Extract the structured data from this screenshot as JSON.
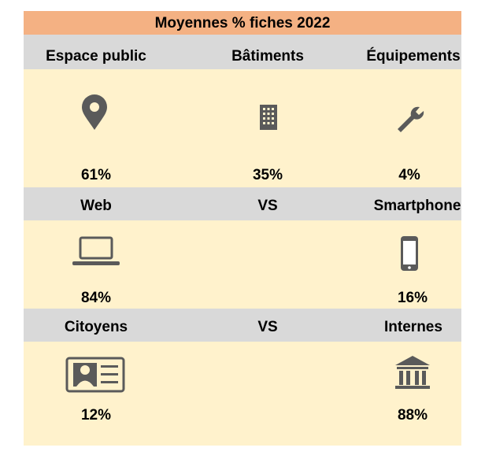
{
  "title": "Moyennes % fiches 2022",
  "sections": [
    {
      "headers": [
        "Espace public",
        "Bâtiments",
        "Équipements"
      ],
      "values": [
        "61%",
        "35%",
        "4%"
      ]
    },
    {
      "headers": [
        "Web",
        "VS",
        "Smartphone"
      ],
      "values": [
        "84%",
        "16%"
      ]
    },
    {
      "headers": [
        "Citoyens",
        "VS",
        "Internes"
      ],
      "values": [
        "12%",
        "88%"
      ]
    }
  ]
}
